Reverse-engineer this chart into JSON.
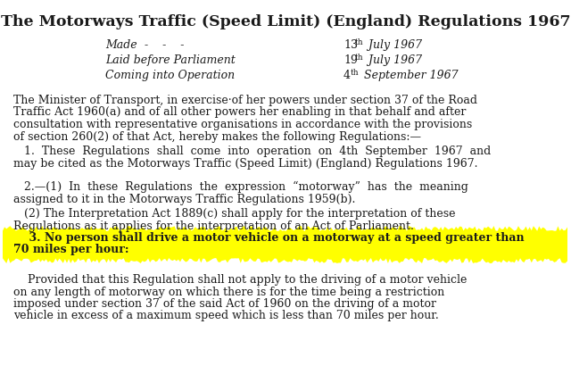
{
  "bg_color": "#ffffff",
  "title": "The Motorways Traffic (Speed Limit) (England) Regulations 1967",
  "made_label": "Made",
  "made_dots": "  -    -    -",
  "laid_label": "Laid before Parliament",
  "operation_label": "Coming into Operation",
  "preamble_line1": "The Minister of Transport, in exercise·of her powers under section 37 of the Road",
  "preamble_line2": "Traffic Act 1960(a) and of all other powers her enabling in that behalf and after",
  "preamble_line3": "consultation with representative organisations in accordance with the provisions",
  "preamble_line4": "of section 260(2) of that Act, hereby makes the following Regulations:—",
  "reg1_line1": "   1.  These  Regulations  shall  come  into  operation  on  4th  September  1967  and",
  "reg1_line2": "may be cited as the Motorways Traffic (Speed Limit) (England) Regulations 1967.",
  "reg2a_line1": "   2.—(1)  In  these  Regulations  the  expression  “motorway”  has  the  meaning",
  "reg2a_line2": "assigned to it in the Motorways Traffic Regulations 1959(b).",
  "reg2b_line1": "   (2) The Interpretation Act 1889(c) shall apply for the interpretation of these",
  "reg2b_line2": "Regulations as it applies for the interpretation of an Act of Parliament.",
  "reg3_line1": "    3. No person shall drive a motor vehicle on a motorway at a speed greater than",
  "reg3_line2": "70 miles per hour:",
  "reg3_highlight": "#ffff00",
  "provided_line1": "    Provided that this Regulation shall not apply to the driving of a motor vehicle",
  "provided_line2": "on any length of motorway on which there is for the time being a restriction",
  "provided_line3": "imposed under section 37 of the said Act of 1960 on the driving of a motor",
  "provided_line4": "vehicle in excess of a maximum speed which is less than 70 miles per hour.",
  "text_color": "#1a1a1a",
  "fontsize_title": 12.5,
  "fontsize_body": 9.0,
  "fontsize_header": 9.0
}
